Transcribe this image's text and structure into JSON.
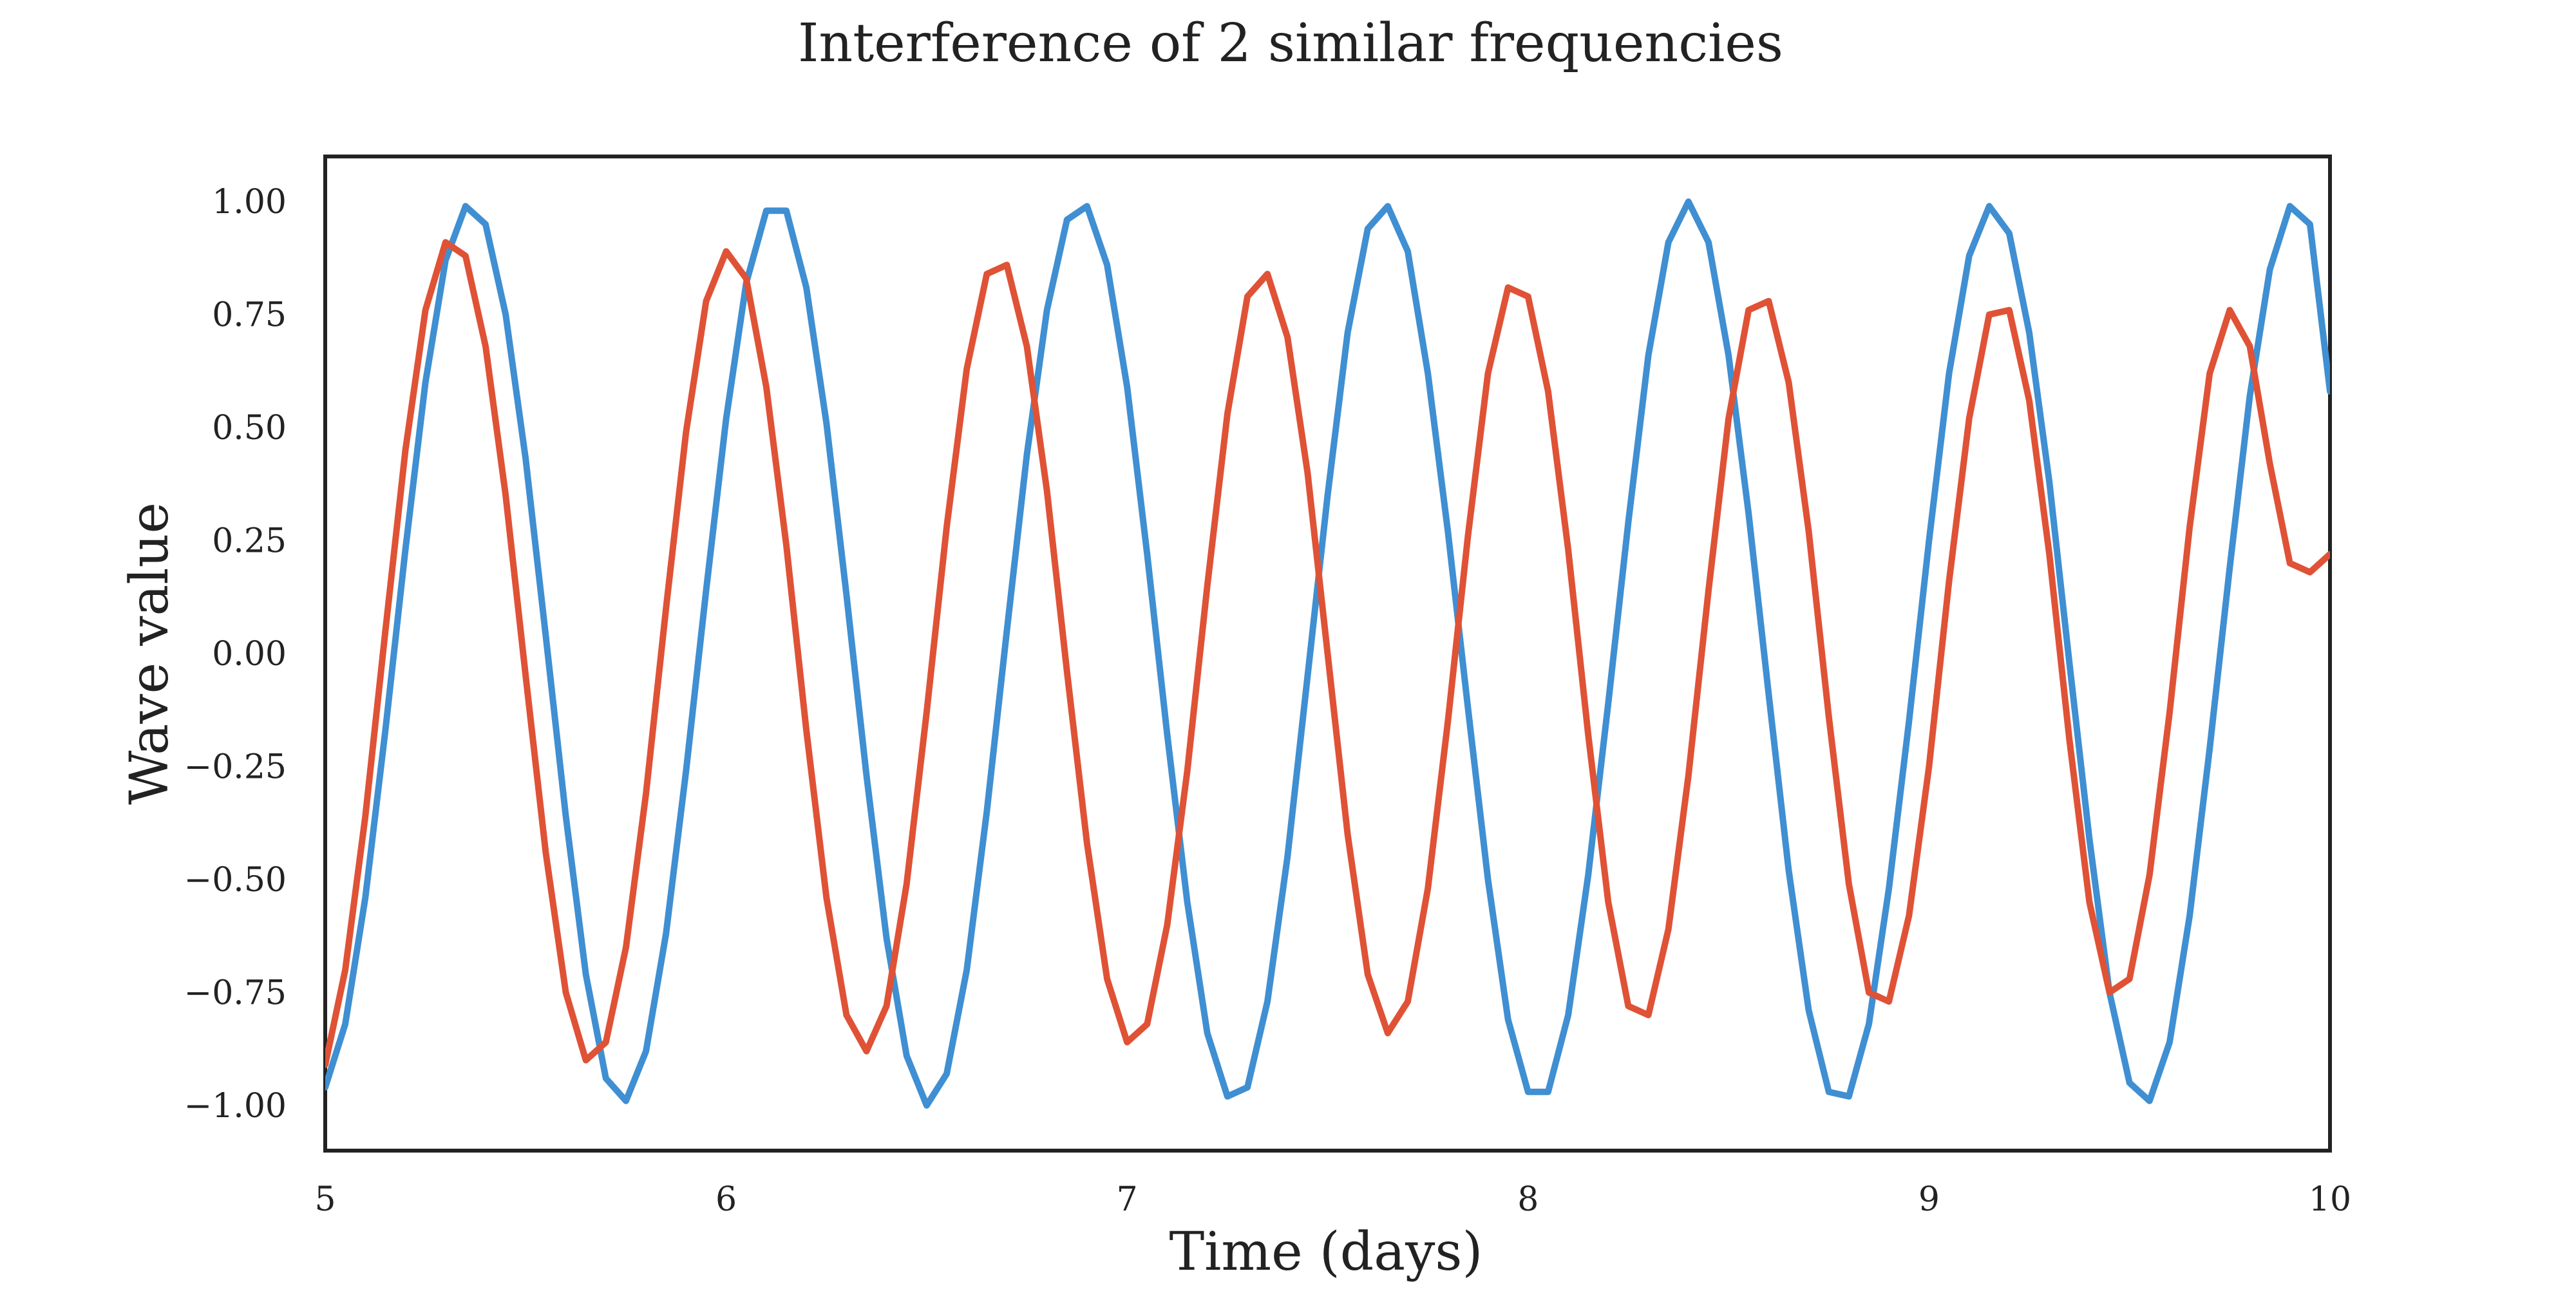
{
  "chart_data": {
    "type": "line",
    "title": "Interference of 2 similar frequencies",
    "xlabel": "Time (days)",
    "ylabel": "Wave value",
    "xlim": [
      5,
      10
    ],
    "ylim": [
      -1.1,
      1.1
    ],
    "x_ticks": [
      5,
      6,
      7,
      8,
      9,
      10
    ],
    "x_tick_labels": [
      "5",
      "6",
      "7",
      "8",
      "9",
      "10"
    ],
    "y_ticks": [
      1.0,
      0.75,
      0.5,
      0.25,
      0.0,
      -0.25,
      -0.5,
      -0.75,
      -1.0
    ],
    "y_tick_labels": [
      "1.00",
      "0.75",
      "0.50",
      "0.25",
      "0.00",
      "−0.25",
      "−0.50",
      "−0.75",
      "−1.00"
    ],
    "grid": false,
    "legend": "none",
    "series": [
      {
        "color": "#3f8fd2",
        "x": [
          5.0,
          5.05,
          5.1,
          5.15,
          5.2,
          5.25,
          5.3,
          5.35,
          5.4,
          5.45,
          5.5,
          5.55,
          5.6,
          5.65,
          5.7,
          5.75,
          5.8,
          5.85,
          5.9,
          5.95,
          6.0,
          6.05,
          6.1,
          6.15,
          6.2,
          6.25,
          6.3,
          6.35,
          6.4,
          6.45,
          6.5,
          6.55,
          6.6,
          6.65,
          6.7,
          6.75,
          6.8,
          6.85,
          6.9,
          6.95,
          7.0,
          7.05,
          7.1,
          7.15,
          7.2,
          7.25,
          7.3,
          7.35,
          7.4,
          7.45,
          7.5,
          7.55,
          7.6,
          7.65,
          7.7,
          7.75,
          7.8,
          7.85,
          7.9,
          7.95,
          8.0,
          8.05,
          8.1,
          8.15,
          8.2,
          8.25,
          8.3,
          8.35,
          8.4,
          8.45,
          8.5,
          8.55,
          8.6,
          8.65,
          8.7,
          8.75,
          8.8,
          8.85,
          8.9,
          8.95,
          9.0,
          9.05,
          9.1,
          9.15,
          9.2,
          9.25,
          9.3,
          9.35,
          9.4,
          9.45,
          9.5,
          9.55,
          9.6,
          9.65,
          9.7,
          9.75,
          9.8,
          9.85,
          9.9,
          9.95,
          10.0
        ],
        "y": [
          -0.96,
          -0.82,
          -0.54,
          -0.17,
          0.23,
          0.6,
          0.87,
          0.99,
          0.95,
          0.75,
          0.43,
          0.04,
          -0.36,
          -0.71,
          -0.94,
          -0.99,
          -0.88,
          -0.62,
          -0.26,
          0.14,
          0.52,
          0.82,
          0.98,
          0.98,
          0.81,
          0.51,
          0.13,
          -0.27,
          -0.63,
          -0.89,
          -1.0,
          -0.93,
          -0.7,
          -0.35,
          0.05,
          0.44,
          0.76,
          0.96,
          0.99,
          0.86,
          0.59,
          0.22,
          -0.18,
          -0.55,
          -0.84,
          -0.98,
          -0.96,
          -0.77,
          -0.45,
          -0.05,
          0.35,
          0.71,
          0.94,
          0.99,
          0.89,
          0.62,
          0.27,
          -0.12,
          -0.5,
          -0.81,
          -0.97,
          -0.97,
          -0.8,
          -0.49,
          -0.11,
          0.29,
          0.66,
          0.91,
          1.0,
          0.91,
          0.66,
          0.31,
          -0.09,
          -0.48,
          -0.79,
          -0.97,
          -0.98,
          -0.82,
          -0.52,
          -0.15,
          0.25,
          0.62,
          0.88,
          0.99,
          0.93,
          0.71,
          0.38,
          -0.02,
          -0.41,
          -0.75,
          -0.95,
          -0.99,
          -0.86,
          -0.58,
          -0.21,
          0.19,
          0.57,
          0.85,
          0.99,
          0.95,
          0.58
        ]
      },
      {
        "color": "#df5236",
        "x": [
          5.0,
          5.05,
          5.1,
          5.15,
          5.2,
          5.25,
          5.3,
          5.35,
          5.4,
          5.45,
          5.5,
          5.55,
          5.6,
          5.65,
          5.7,
          5.75,
          5.8,
          5.85,
          5.9,
          5.95,
          6.0,
          6.05,
          6.1,
          6.15,
          6.2,
          6.25,
          6.3,
          6.35,
          6.4,
          6.45,
          6.5,
          6.55,
          6.6,
          6.65,
          6.7,
          6.75,
          6.8,
          6.85,
          6.9,
          6.95,
          7.0,
          7.05,
          7.1,
          7.15,
          7.2,
          7.25,
          7.3,
          7.35,
          7.4,
          7.45,
          7.5,
          7.55,
          7.6,
          7.65,
          7.7,
          7.75,
          7.8,
          7.85,
          7.9,
          7.95,
          8.0,
          8.05,
          8.1,
          8.15,
          8.2,
          8.25,
          8.3,
          8.35,
          8.4,
          8.45,
          8.5,
          8.55,
          8.6,
          8.65,
          8.7,
          8.75,
          8.8,
          8.85,
          8.9,
          8.95,
          9.0,
          9.05,
          9.1,
          9.15,
          9.2,
          9.25,
          9.3,
          9.35,
          9.4,
          9.45,
          9.5,
          9.55,
          9.6,
          9.65,
          9.7,
          9.75,
          9.8,
          9.85,
          9.9,
          9.95,
          10.0
        ],
        "y": [
          -0.91,
          -0.7,
          -0.36,
          0.05,
          0.45,
          0.76,
          0.91,
          0.88,
          0.68,
          0.35,
          -0.05,
          -0.44,
          -0.75,
          -0.9,
          -0.86,
          -0.65,
          -0.31,
          0.1,
          0.49,
          0.78,
          0.89,
          0.83,
          0.59,
          0.24,
          -0.17,
          -0.54,
          -0.8,
          -0.88,
          -0.78,
          -0.51,
          -0.13,
          0.28,
          0.63,
          0.84,
          0.86,
          0.68,
          0.36,
          -0.04,
          -0.42,
          -0.72,
          -0.86,
          -0.82,
          -0.6,
          -0.26,
          0.15,
          0.53,
          0.79,
          0.84,
          0.7,
          0.4,
          0.0,
          -0.4,
          -0.71,
          -0.84,
          -0.77,
          -0.52,
          -0.15,
          0.26,
          0.62,
          0.81,
          0.79,
          0.58,
          0.23,
          -0.18,
          -0.55,
          -0.78,
          -0.8,
          -0.61,
          -0.27,
          0.14,
          0.52,
          0.76,
          0.78,
          0.6,
          0.27,
          -0.14,
          -0.51,
          -0.75,
          -0.77,
          -0.58,
          -0.25,
          0.16,
          0.52,
          0.75,
          0.76,
          0.56,
          0.22,
          -0.19,
          -0.55,
          -0.75,
          -0.72,
          -0.49,
          -0.13,
          0.28,
          0.62,
          0.76,
          0.68,
          0.42,
          0.2,
          0.18,
          0.22
        ]
      }
    ]
  }
}
